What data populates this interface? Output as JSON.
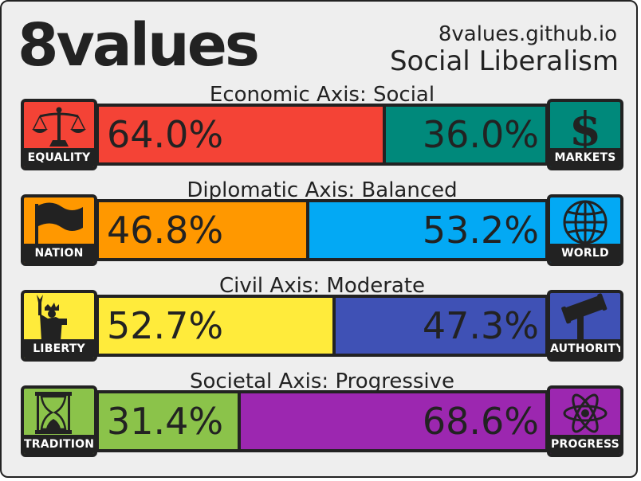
{
  "header": {
    "logo": "8values",
    "site": "8values.github.io",
    "ideology": "Social Liberalism"
  },
  "axes": [
    {
      "title": "Economic Axis: Social",
      "left": {
        "label": "EQUALITY",
        "icon": "scales-icon",
        "percent": "64.0%",
        "value": 64.0,
        "color": "#f44336",
        "icon_bg": "#f44336"
      },
      "right": {
        "label": "MARKETS",
        "icon": "dollar-icon",
        "percent": "36.0%",
        "value": 36.0,
        "color": "#00897b",
        "icon_bg": "#00897b"
      }
    },
    {
      "title": "Diplomatic Axis: Balanced",
      "left": {
        "label": "NATION",
        "icon": "flag-icon",
        "percent": "46.8%",
        "value": 46.8,
        "color": "#ff9800",
        "icon_bg": "#ff9800"
      },
      "right": {
        "label": "WORLD",
        "icon": "globe-icon",
        "percent": "53.2%",
        "value": 53.2,
        "color": "#03a9f4",
        "icon_bg": "#03a9f4"
      }
    },
    {
      "title": "Civil Axis: Moderate",
      "left": {
        "label": "LIBERTY",
        "icon": "statue-of-liberty-icon",
        "percent": "52.7%",
        "value": 52.7,
        "color": "#ffeb3b",
        "icon_bg": "#ffeb3b"
      },
      "right": {
        "label": "AUTHORITY",
        "icon": "gavel-icon",
        "percent": "47.3%",
        "value": 47.3,
        "color": "#3f51b5",
        "icon_bg": "#3f51b5"
      }
    },
    {
      "title": "Societal Axis: Progressive",
      "left": {
        "label": "TRADITION",
        "icon": "hourglass-icon",
        "percent": "31.4%",
        "value": 31.4,
        "color": "#8bc34a",
        "icon_bg": "#8bc34a"
      },
      "right": {
        "label": "PROGRESS",
        "icon": "atom-icon",
        "percent": "68.6%",
        "value": 68.6,
        "color": "#9c27b0",
        "icon_bg": "#9c27b0"
      }
    }
  ]
}
